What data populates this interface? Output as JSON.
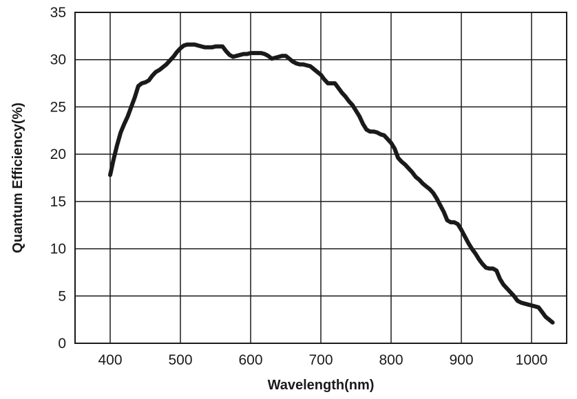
{
  "chart_data": {
    "type": "line",
    "xlabel": "Wavelength(nm)",
    "ylabel": "Quantum Efficiency(%)",
    "xlim": [
      350,
      1050
    ],
    "ylim": [
      0,
      35
    ],
    "x_ticks": [
      400,
      500,
      600,
      700,
      800,
      900,
      1000
    ],
    "y_ticks": [
      0,
      5,
      10,
      15,
      20,
      25,
      30,
      35
    ],
    "grid": true,
    "line_color": "#1a1a1a",
    "series": [
      {
        "x": [
          400,
          405,
          410,
          415,
          420,
          425,
          430,
          435,
          440,
          445,
          450,
          455,
          460,
          465,
          470,
          475,
          480,
          485,
          490,
          495,
          500,
          505,
          510,
          515,
          520,
          525,
          530,
          535,
          540,
          545,
          550,
          555,
          560,
          565,
          570,
          575,
          580,
          585,
          590,
          595,
          600,
          605,
          610,
          615,
          620,
          625,
          630,
          635,
          640,
          645,
          650,
          655,
          660,
          665,
          670,
          675,
          680,
          685,
          690,
          695,
          700,
          705,
          710,
          715,
          720,
          725,
          730,
          735,
          740,
          745,
          750,
          755,
          760,
          765,
          770,
          775,
          780,
          785,
          790,
          795,
          800,
          805,
          810,
          815,
          820,
          825,
          830,
          835,
          840,
          845,
          850,
          855,
          860,
          865,
          870,
          875,
          880,
          885,
          890,
          895,
          900,
          905,
          910,
          915,
          920,
          925,
          930,
          935,
          940,
          945,
          950,
          955,
          960,
          965,
          970,
          975,
          980,
          985,
          990,
          995,
          1000,
          1005,
          1010,
          1015,
          1020,
          1025,
          1030
        ],
        "values": [
          17.8,
          19.5,
          21.0,
          22.3,
          23.2,
          24.0,
          25.0,
          26.0,
          27.2,
          27.5,
          27.6,
          27.8,
          28.3,
          28.7,
          28.9,
          29.2,
          29.5,
          29.9,
          30.3,
          30.8,
          31.2,
          31.5,
          31.6,
          31.6,
          31.6,
          31.5,
          31.4,
          31.3,
          31.3,
          31.3,
          31.4,
          31.4,
          31.4,
          30.9,
          30.5,
          30.3,
          30.4,
          30.5,
          30.6,
          30.6,
          30.7,
          30.7,
          30.7,
          30.7,
          30.6,
          30.4,
          30.1,
          30.2,
          30.3,
          30.4,
          30.4,
          30.1,
          29.8,
          29.6,
          29.5,
          29.5,
          29.4,
          29.3,
          29.0,
          28.7,
          28.4,
          27.9,
          27.5,
          27.5,
          27.5,
          27.0,
          26.5,
          26.1,
          25.6,
          25.2,
          24.6,
          24.0,
          23.2,
          22.6,
          22.4,
          22.4,
          22.3,
          22.1,
          22.0,
          21.6,
          21.2,
          20.6,
          19.6,
          19.2,
          18.9,
          18.5,
          18.1,
          17.6,
          17.3,
          16.9,
          16.6,
          16.3,
          15.9,
          15.3,
          14.6,
          13.9,
          13.0,
          12.8,
          12.8,
          12.6,
          12.0,
          11.3,
          10.6,
          10.0,
          9.5,
          8.9,
          8.4,
          8.0,
          7.9,
          7.9,
          7.7,
          6.8,
          6.2,
          5.8,
          5.4,
          5.0,
          4.5,
          4.3,
          4.2,
          4.1,
          4.0,
          3.9,
          3.8,
          3.3,
          2.8,
          2.5,
          2.2
        ]
      }
    ]
  }
}
